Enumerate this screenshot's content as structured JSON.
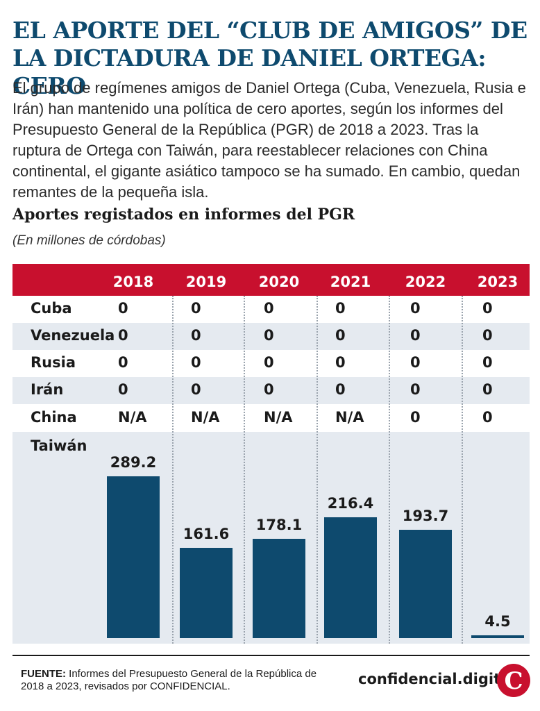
{
  "title": "EL APORTE DEL “CLUB DE AMIGOS” DE LA DICTADURA DE DANIEL ORTEGA: CERO",
  "intro": "El grupo de regímenes amigos de Daniel Ortega (Cuba, Venezuela, Rusia e Irán) han mantenido una política de cero aportes, según los informes del Presupuesto General de la República (PGR) de 2018 a 2023. Tras la ruptura de Ortega con Taiwán, para reestablecer relaciones con China continental, el gigante asiático tampoco se ha sumado. En cambio, quedan remantes de la pequeña isla.",
  "subtitle": "Aportes registados en informes del PGR",
  "units": "(En millones de córdobas)",
  "colors": {
    "accent": "#c8102e",
    "bar": "#0e4a6e",
    "band": "#e5eaf0",
    "title": "#0e4a6e"
  },
  "chart_data": {
    "type": "table",
    "years": [
      "2018",
      "2019",
      "2020",
      "2021",
      "2022",
      "2023"
    ],
    "rows": [
      {
        "name": "Cuba",
        "values": [
          "0",
          "0",
          "0",
          "0",
          "0",
          "0"
        ]
      },
      {
        "name": "Venezuela",
        "values": [
          "0",
          "0",
          "0",
          "0",
          "0",
          "0"
        ]
      },
      {
        "name": "Rusia",
        "values": [
          "0",
          "0",
          "0",
          "0",
          "0",
          "0"
        ]
      },
      {
        "name": "Irán",
        "values": [
          "0",
          "0",
          "0",
          "0",
          "0",
          "0"
        ]
      },
      {
        "name": "China",
        "values": [
          "N/A",
          "N/A",
          "N/A",
          "N/A",
          "0",
          "0"
        ]
      }
    ],
    "bar_row": {
      "name": "Taiwán",
      "type": "bar",
      "values": [
        289.2,
        161.6,
        178.1,
        216.4,
        193.7,
        4.5
      ],
      "labels": [
        "289.2",
        "161.6",
        "178.1",
        "216.4",
        "193.7",
        "4.5"
      ]
    }
  },
  "footer": {
    "source_label": "FUENTE:",
    "source_text": " Informes del Presupuesto General de la República de 2018 a 2023, revisados por CONFIDENCIAL.",
    "brand": "confidencial.digital",
    "logo_letter": "C"
  }
}
